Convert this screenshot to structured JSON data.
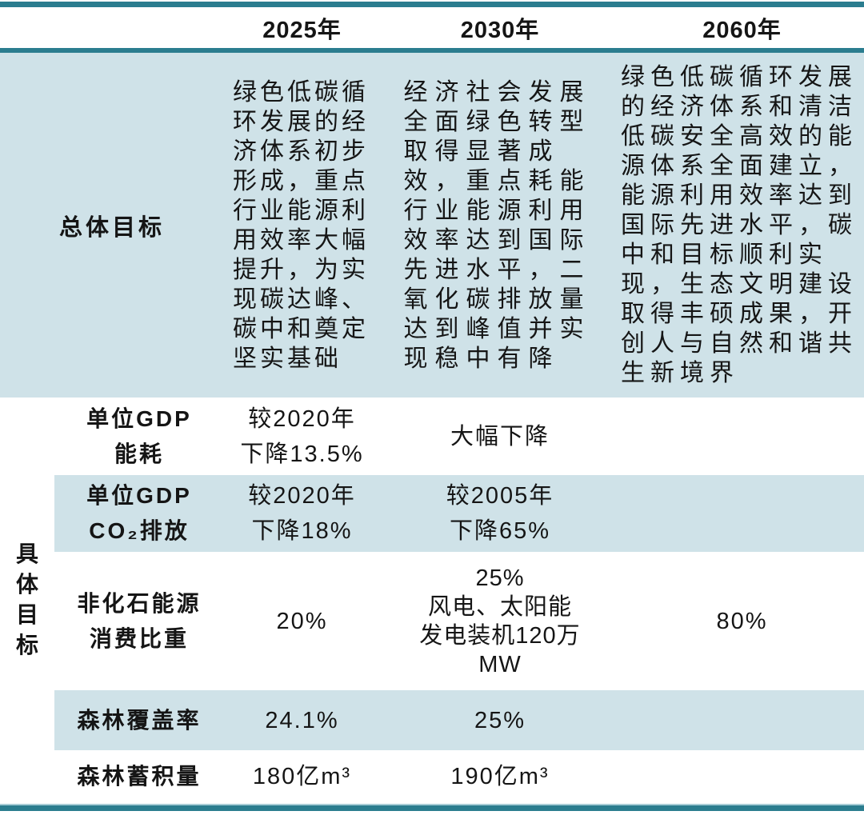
{
  "colors": {
    "border_teal": "#2b7d8f",
    "row_shade": "#cfe2e8",
    "text": "#151515"
  },
  "table": {
    "header": {
      "corner": "",
      "year_2025": "2025年",
      "year_2030": "2030年",
      "year_2060": "2060年"
    },
    "overall": {
      "label": "总体目标",
      "goal_2025": "绿色低碳循环发展的经济体系初步形成，重点行业能源利用效率大幅提升，为实现碳达峰、碳中和奠定坚实基础",
      "goal_2030": "经济社会发展全面绿色转型取得显著成效，重点耗能行业能源利用效率达到国际先进水平，二氧化碳排放量达到峰值并实现稳中有降",
      "goal_2060": "绿色低碳循环发展的经济体系和清洁低碳安全高效的能源体系全面建立，能源利用效率达到国际先进水平，碳中和目标顺利实现，生态文明建设取得丰硕成果，开创人与自然和谐共生新境界"
    },
    "specific": {
      "group_label": "具体目标",
      "rows": [
        {
          "label": "单位GDP\n能耗",
          "y2025": "较2020年\n下降13.5%",
          "y2030": "大幅下降",
          "y2060": ""
        },
        {
          "label": "单位GDP\nCO₂排放",
          "y2025": "较2020年\n下降18%",
          "y2030": "较2005年\n下降65%",
          "y2060": ""
        },
        {
          "label": "非化石能源\n消费比重",
          "y2025": "20%",
          "y2030": "25%\n风电、太阳能\n发电装机120万\nMW",
          "y2060": "80%"
        },
        {
          "label": "森林覆盖率",
          "y2025": "24.1%",
          "y2030": "25%",
          "y2060": ""
        },
        {
          "label": "森林蓄积量",
          "y2025": "180亿m³",
          "y2030": "190亿m³",
          "y2060": ""
        }
      ]
    }
  }
}
